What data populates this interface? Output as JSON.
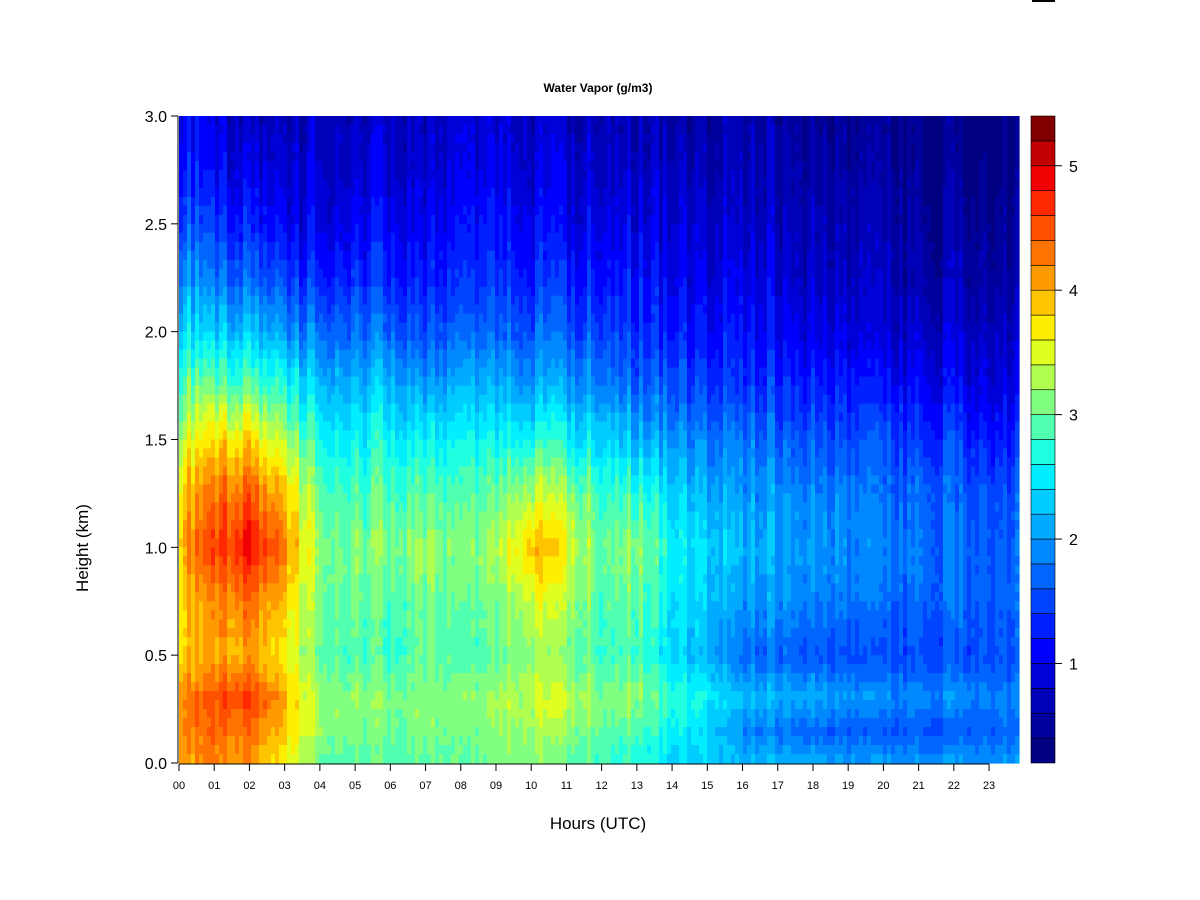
{
  "chart_data": {
    "type": "heatmap",
    "title": "Water Vapor (g/m3)",
    "xlabel": "Hours (UTC)",
    "ylabel": "Height (km)",
    "xlim": [
      0,
      23.85
    ],
    "ylim": [
      0,
      3.0
    ],
    "x_tick_labels": [
      "00",
      "01",
      "02",
      "03",
      "04",
      "05",
      "06",
      "07",
      "08",
      "09",
      "10",
      "11",
      "12",
      "13",
      "14",
      "15",
      "16",
      "17",
      "18",
      "19",
      "20",
      "21",
      "22",
      "23"
    ],
    "y_tick_labels": [
      "0.0",
      "0.5",
      "1.0",
      "1.5",
      "2.0",
      "2.5",
      "3.0"
    ],
    "colorbar": {
      "range": [
        0.2,
        5.4
      ],
      "step": 0.2,
      "tick_labels": [
        "1",
        "2",
        "3",
        "4",
        "5"
      ],
      "colors": [
        "#000080",
        "#00009c",
        "#0000b8",
        "#0000d8",
        "#0000ff",
        "#0020ff",
        "#0044ff",
        "#0066ff",
        "#0088ff",
        "#00aaff",
        "#00ccff",
        "#00eeff",
        "#20ffe0",
        "#50ffb0",
        "#80ff80",
        "#b0ff50",
        "#e0ff20",
        "#ffee00",
        "#ffc400",
        "#ff9a00",
        "#ff7400",
        "#ff5000",
        "#ff2800",
        "#f00000",
        "#c00000",
        "#800000"
      ]
    },
    "x": [
      0,
      1,
      2,
      3,
      4,
      5,
      6,
      7,
      8,
      9,
      10,
      11,
      12,
      13,
      14,
      15,
      16,
      17,
      18,
      19,
      20,
      21,
      22,
      23,
      24
    ],
    "y": [
      0,
      0.15,
      0.3,
      0.5,
      0.75,
      1.0,
      1.25,
      1.5,
      1.75,
      2.0,
      2.25,
      2.5,
      2.75,
      3.0
    ],
    "z": [
      [
        4.0,
        4.2,
        4.2,
        3.8,
        3.8,
        4.0,
        3.8,
        3.4,
        3.0,
        2.4,
        2.0,
        1.6,
        1.3,
        1.1
      ],
      [
        4.2,
        4.4,
        4.5,
        4.0,
        4.2,
        4.6,
        4.3,
        3.8,
        3.0,
        2.3,
        1.8,
        1.4,
        1.1,
        0.9
      ],
      [
        4.1,
        4.3,
        4.6,
        4.0,
        4.3,
        4.8,
        4.4,
        3.7,
        2.9,
        2.2,
        1.6,
        1.2,
        0.9,
        0.7
      ],
      [
        3.6,
        3.8,
        4.0,
        3.6,
        3.8,
        4.2,
        3.8,
        3.2,
        2.6,
        1.9,
        1.4,
        1.0,
        0.8,
        0.6
      ],
      [
        3.0,
        3.2,
        3.2,
        3.0,
        3.1,
        3.2,
        3.0,
        2.7,
        2.3,
        1.8,
        1.3,
        1.0,
        0.9,
        0.8
      ],
      [
        2.9,
        3.1,
        3.2,
        2.9,
        3.0,
        3.1,
        2.9,
        2.6,
        2.2,
        1.8,
        1.4,
        1.1,
        0.9,
        0.8
      ],
      [
        2.9,
        3.0,
        3.1,
        2.8,
        2.9,
        3.1,
        2.9,
        2.6,
        2.2,
        1.7,
        1.3,
        1.1,
        0.9,
        0.8
      ],
      [
        3.0,
        3.1,
        3.2,
        3.0,
        3.1,
        3.3,
        3.0,
        2.6,
        2.1,
        1.6,
        1.3,
        1.1,
        0.9,
        0.8
      ],
      [
        2.9,
        3.0,
        3.1,
        2.8,
        2.9,
        3.0,
        2.8,
        2.5,
        2.1,
        1.6,
        1.3,
        1.1,
        0.9,
        0.8
      ],
      [
        3.0,
        3.1,
        3.2,
        2.9,
        3.0,
        3.2,
        2.9,
        2.5,
        2.0,
        1.6,
        1.3,
        1.1,
        0.9,
        0.8
      ],
      [
        3.1,
        3.3,
        3.4,
        3.2,
        3.5,
        4.0,
        3.4,
        2.7,
        2.1,
        1.7,
        1.3,
        1.1,
        0.9,
        0.8
      ],
      [
        3.0,
        3.2,
        3.4,
        3.1,
        3.3,
        3.6,
        3.2,
        2.6,
        2.0,
        1.6,
        1.3,
        1.0,
        0.9,
        0.7
      ],
      [
        2.8,
        3.0,
        3.1,
        2.8,
        2.9,
        3.0,
        2.8,
        2.4,
        1.9,
        1.5,
        1.2,
        1.0,
        0.8,
        0.7
      ],
      [
        2.7,
        2.9,
        3.2,
        2.9,
        3.0,
        3.2,
        2.8,
        2.2,
        1.7,
        1.4,
        1.2,
        1.0,
        0.8,
        0.7
      ],
      [
        2.4,
        2.6,
        2.8,
        2.4,
        2.5,
        2.6,
        2.4,
        2.0,
        1.6,
        1.3,
        1.1,
        0.9,
        0.8,
        0.6
      ],
      [
        2.3,
        2.4,
        2.6,
        2.2,
        2.3,
        2.4,
        2.2,
        1.9,
        1.5,
        1.2,
        1.0,
        0.9,
        0.7,
        0.6
      ],
      [
        2.2,
        1.9,
        2.2,
        1.7,
        2.0,
        2.2,
        2.0,
        1.8,
        1.4,
        1.2,
        1.0,
        0.8,
        0.7,
        0.6
      ],
      [
        2.2,
        1.8,
        2.2,
        1.7,
        2.0,
        2.1,
        2.0,
        1.7,
        1.4,
        1.1,
        0.9,
        0.8,
        0.7,
        0.6
      ],
      [
        2.1,
        1.7,
        2.1,
        1.6,
        1.9,
        2.0,
        1.9,
        1.6,
        1.3,
        1.0,
        0.8,
        0.7,
        0.6,
        0.5
      ],
      [
        2.0,
        1.6,
        2.0,
        1.5,
        1.8,
        1.9,
        1.8,
        1.5,
        1.2,
        0.9,
        0.7,
        0.6,
        0.5,
        0.4
      ],
      [
        2.0,
        1.6,
        1.9,
        1.5,
        1.7,
        1.8,
        1.7,
        1.5,
        1.1,
        0.8,
        0.7,
        0.6,
        0.5,
        0.4
      ],
      [
        2.0,
        1.6,
        1.9,
        1.5,
        1.7,
        1.8,
        1.7,
        1.4,
        1.1,
        0.8,
        0.6,
        0.5,
        0.4,
        0.4
      ],
      [
        2.0,
        1.6,
        1.9,
        1.5,
        1.7,
        1.7,
        1.6,
        1.4,
        1.0,
        0.8,
        0.6,
        0.5,
        0.4,
        0.3
      ],
      [
        2.0,
        1.7,
        1.9,
        1.6,
        1.7,
        1.7,
        1.6,
        1.3,
        1.0,
        0.8,
        0.6,
        0.5,
        0.4,
        0.3
      ],
      [
        2.0,
        1.7,
        1.9,
        1.6,
        1.7,
        1.7,
        1.6,
        1.3,
        1.0,
        0.8,
        0.6,
        0.5,
        0.4,
        0.3
      ]
    ]
  }
}
